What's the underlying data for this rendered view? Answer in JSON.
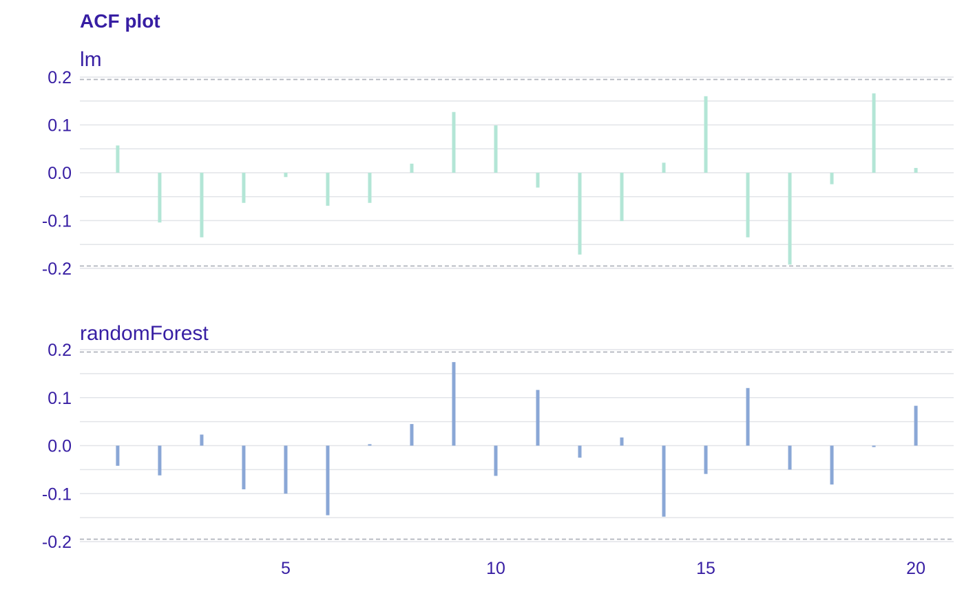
{
  "colors": {
    "text": "#371ea3",
    "grid": "#e2e4e8",
    "threshold": "#b0b4bc",
    "lm_bar": "#b3e6d6",
    "rf_bar": "#8aa7d6"
  },
  "chart_data": {
    "type": "bar",
    "title": "ACF plot",
    "xlabel": "",
    "ylabel": "",
    "x_ticks": [
      5,
      10,
      15,
      20
    ],
    "xlim": [
      0.1,
      20.9
    ],
    "ylim": [
      -0.2,
      0.2
    ],
    "y_ticks": [
      0.2,
      0.1,
      0.0,
      -0.1,
      -0.2
    ],
    "y_tick_labels": [
      "0.2",
      "0.1",
      "0.0",
      "-0.1",
      "-0.2"
    ],
    "confidence_bounds": [
      0.195,
      -0.195
    ],
    "grid": true,
    "panels": [
      {
        "name": "lm",
        "color_key": "lm_bar",
        "lags": [
          1,
          2,
          3,
          4,
          5,
          6,
          7,
          8,
          9,
          10,
          11,
          12,
          13,
          14,
          15,
          16,
          17,
          18,
          19,
          20
        ],
        "values": [
          0.057,
          -0.104,
          -0.135,
          -0.063,
          -0.009,
          -0.069,
          -0.063,
          0.019,
          0.127,
          0.099,
          -0.031,
          -0.171,
          -0.101,
          0.021,
          0.16,
          -0.135,
          -0.192,
          -0.024,
          0.166,
          0.01
        ]
      },
      {
        "name": "randomForest",
        "color_key": "rf_bar",
        "lags": [
          1,
          2,
          3,
          4,
          5,
          6,
          7,
          8,
          9,
          10,
          11,
          12,
          13,
          14,
          15,
          16,
          17,
          18,
          19,
          20
        ],
        "values": [
          -0.042,
          -0.062,
          0.023,
          -0.091,
          -0.1,
          -0.145,
          0.003,
          0.045,
          0.174,
          -0.063,
          0.116,
          -0.025,
          0.017,
          -0.148,
          -0.059,
          0.12,
          -0.05,
          -0.081,
          -0.003,
          0.083
        ]
      }
    ]
  }
}
